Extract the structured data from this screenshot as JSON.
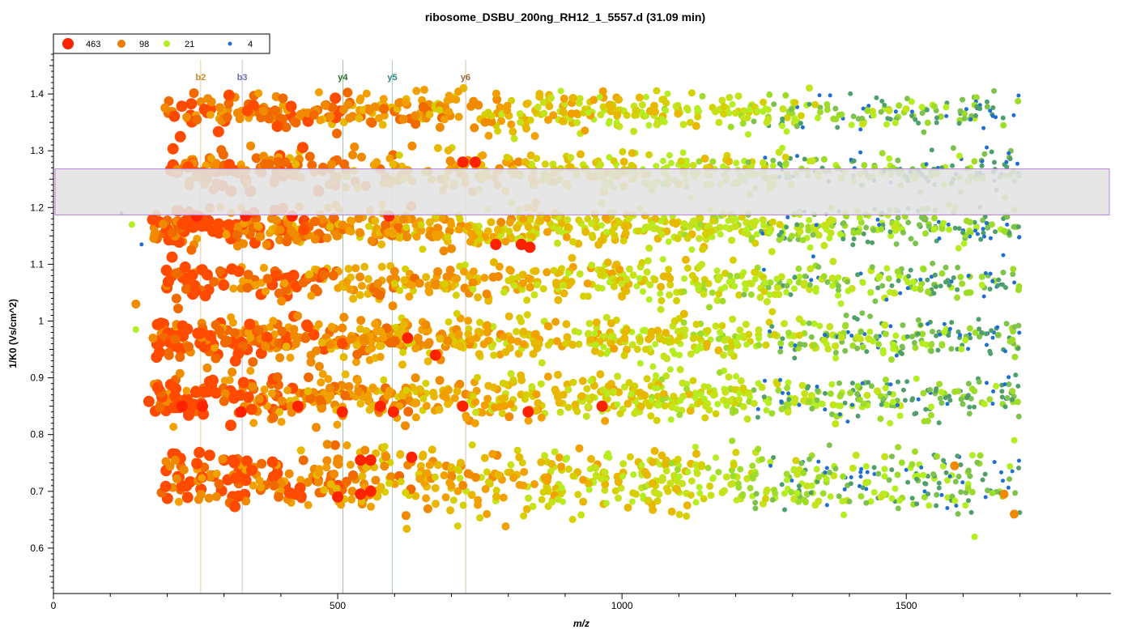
{
  "chart_data": {
    "type": "scatter",
    "title": "ribosome_DSBU_200ng_RH12_1_5557.d  (31.09 min)",
    "xlabel": "m/z",
    "ylabel": "1/K0 (Vs/cm^2)",
    "xlim": [
      0,
      1860
    ],
    "ylim": [
      0.52,
      1.48
    ],
    "x_ticks": [
      0,
      500,
      1000,
      1500
    ],
    "x_tick_labels": [
      "0",
      "500",
      "1000",
      "1500"
    ],
    "y_ticks": [
      0.6,
      0.7,
      0.8,
      0.9,
      1.0,
      1.1,
      1.2,
      1.3,
      1.4
    ],
    "y_tick_labels": [
      "0.6",
      "0.7",
      "0.8",
      "0.9",
      "1",
      "1.1",
      "1.2",
      "1.3",
      "1.4"
    ],
    "grid": false,
    "legend_position": "top-left",
    "legend": [
      {
        "label": "463",
        "color": "#ff2200",
        "size": "large"
      },
      {
        "label": "98",
        "color": "#f07a00",
        "size": "medium"
      },
      {
        "label": "21",
        "color": "#b4ee20",
        "size": "small"
      },
      {
        "label": "4",
        "color": "#1f6fd1",
        "size": "tiny"
      }
    ],
    "selection_band": {
      "y_low": 1.187,
      "y_high": 1.268,
      "x_from": 0,
      "x_to": 1860,
      "fill": "#e3e3e3",
      "stroke": "#b97fd6"
    },
    "fragment_markers": [
      {
        "label": "b2",
        "x": 259,
        "color": "#c58a2c"
      },
      {
        "label": "b3",
        "x": 332,
        "color": "#6b6fb0"
      },
      {
        "label": "y4",
        "x": 509,
        "color": "#2a6e2a"
      },
      {
        "label": "y5",
        "x": 596,
        "color": "#2e8580"
      },
      {
        "label": "y6",
        "x": 725,
        "color": "#9a6a3a"
      }
    ],
    "mobility_bands": [
      {
        "y_center": 0.72,
        "y_spread": 0.1,
        "x_range": [
          190,
          1700
        ],
        "density": "high"
      },
      {
        "y_center": 0.865,
        "y_spread": 0.07,
        "x_range": [
          160,
          1700
        ],
        "density": "high"
      },
      {
        "y_center": 0.97,
        "y_spread": 0.06,
        "x_range": [
          180,
          1700
        ],
        "density": "high"
      },
      {
        "y_center": 1.07,
        "y_spread": 0.06,
        "x_range": [
          195,
          1700
        ],
        "density": "medium"
      },
      {
        "y_center": 1.165,
        "y_spread": 0.055,
        "x_range": [
          170,
          1700
        ],
        "density": "high"
      },
      {
        "y_center": 1.265,
        "y_spread": 0.06,
        "x_range": [
          200,
          1700
        ],
        "density": "medium"
      },
      {
        "y_center": 1.37,
        "y_spread": 0.06,
        "x_range": [
          195,
          1700
        ],
        "density": "medium"
      }
    ],
    "intense_points": [
      {
        "x": 720,
        "y": 1.28
      },
      {
        "x": 742,
        "y": 1.28
      },
      {
        "x": 778,
        "y": 1.135
      },
      {
        "x": 823,
        "y": 1.135
      },
      {
        "x": 838,
        "y": 1.13
      },
      {
        "x": 623,
        "y": 0.97
      },
      {
        "x": 672,
        "y": 0.94
      },
      {
        "x": 226,
        "y": 0.85
      },
      {
        "x": 262,
        "y": 0.85
      },
      {
        "x": 330,
        "y": 0.84
      },
      {
        "x": 430,
        "y": 0.85
      },
      {
        "x": 508,
        "y": 0.84
      },
      {
        "x": 575,
        "y": 0.85
      },
      {
        "x": 598,
        "y": 0.84
      },
      {
        "x": 720,
        "y": 0.85
      },
      {
        "x": 835,
        "y": 0.84
      },
      {
        "x": 965,
        "y": 0.85
      },
      {
        "x": 540,
        "y": 0.755
      },
      {
        "x": 558,
        "y": 0.755
      },
      {
        "x": 500,
        "y": 0.69
      },
      {
        "x": 540,
        "y": 0.695
      },
      {
        "x": 558,
        "y": 0.7
      },
      {
        "x": 630,
        "y": 0.76
      },
      {
        "x": 252,
        "y": 1.185
      },
      {
        "x": 338,
        "y": 1.185
      },
      {
        "x": 420,
        "y": 1.185
      },
      {
        "x": 590,
        "y": 1.185
      }
    ],
    "sparse_outliers": [
      {
        "x": 120,
        "y": 1.19,
        "tier": "4"
      },
      {
        "x": 138,
        "y": 1.17,
        "tier": "21"
      },
      {
        "x": 155,
        "y": 1.135,
        "tier": "4"
      },
      {
        "x": 145,
        "y": 0.985,
        "tier": "21"
      },
      {
        "x": 145,
        "y": 1.03,
        "tier": "98"
      },
      {
        "x": 175,
        "y": 0.97,
        "tier": "98"
      },
      {
        "x": 1620,
        "y": 0.62,
        "tier": "21"
      },
      {
        "x": 1690,
        "y": 0.79,
        "tier": "21"
      },
      {
        "x": 1585,
        "y": 0.745,
        "tier": "98"
      },
      {
        "x": 1672,
        "y": 0.695,
        "tier": "98"
      },
      {
        "x": 1690,
        "y": 0.66,
        "tier": "98"
      },
      {
        "x": 1540,
        "y": 0.675,
        "tier": "21"
      }
    ]
  }
}
